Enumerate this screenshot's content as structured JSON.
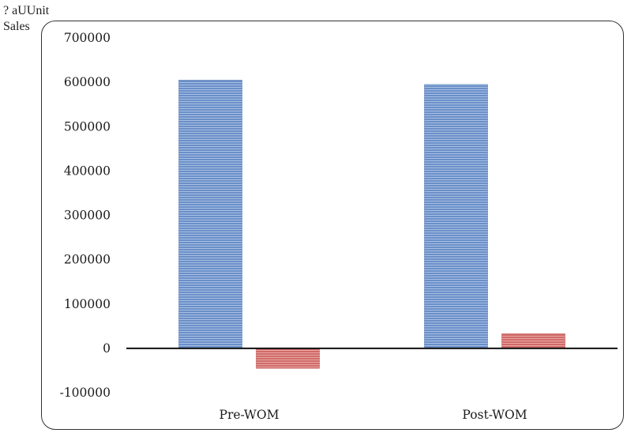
{
  "chart_data": {
    "type": "bar",
    "ylabel_lines": [
      "? aUUnit",
      "Sales"
    ],
    "categories": [
      "Pre-WOM",
      "Post-WOM"
    ],
    "series": [
      {
        "values": [
          605000,
          595000
        ],
        "color": "#6a8fc8"
      },
      {
        "values": [
          -45000,
          33000
        ],
        "color": "#cf6b68"
      }
    ],
    "ylim": [
      -100000,
      700000
    ],
    "yticks": [
      "700000",
      "600000",
      "500000",
      "400000",
      "300000",
      "200000",
      "100000",
      "0",
      "-100000"
    ],
    "ytick_values": [
      700000,
      600000,
      500000,
      400000,
      300000,
      200000,
      100000,
      0,
      -100000
    ],
    "grid": false
  }
}
